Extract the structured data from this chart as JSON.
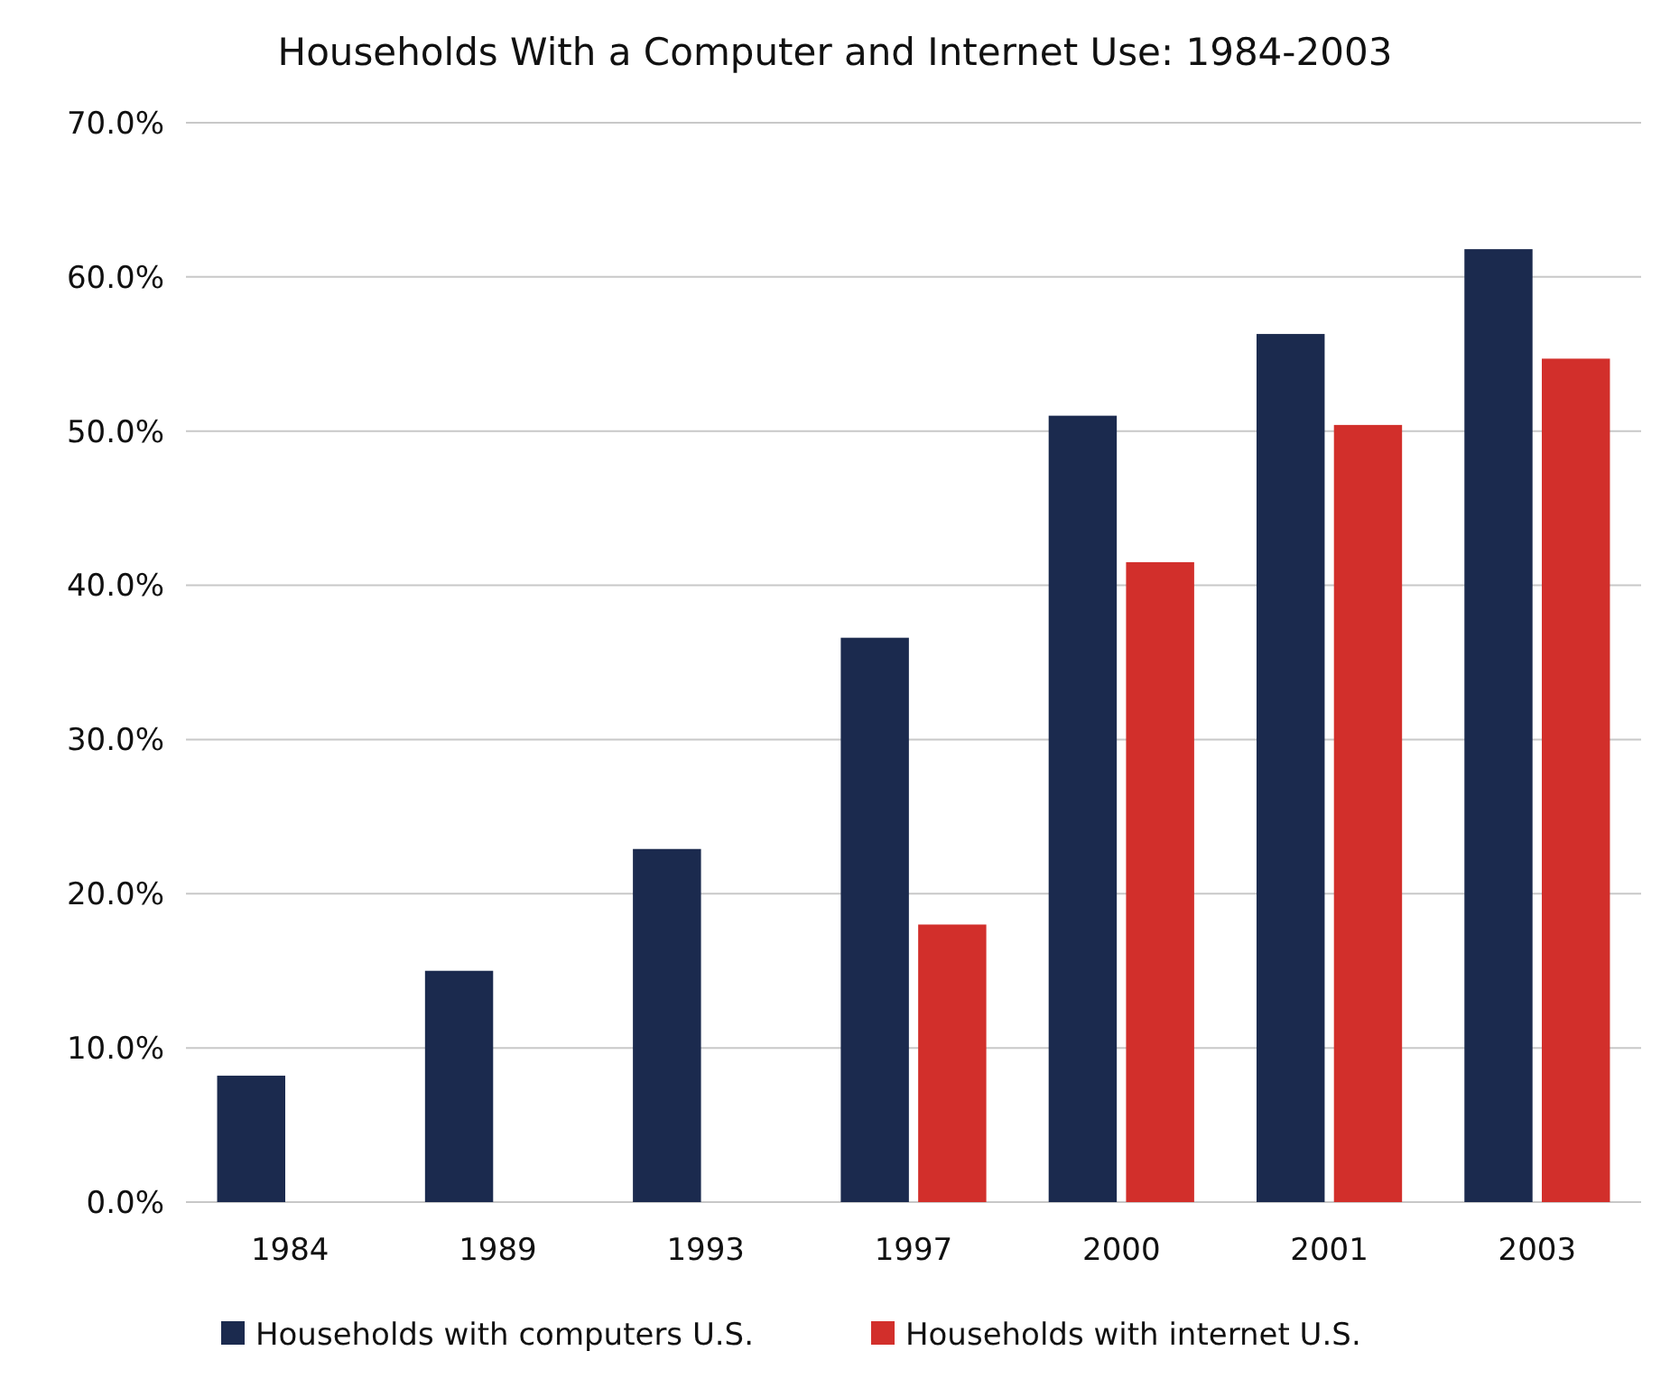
{
  "chart_data": {
    "type": "bar",
    "title": "Households With a Computer and Internet Use: 1984-2003",
    "categories": [
      "1984",
      "1989",
      "1993",
      "1997",
      "2000",
      "2001",
      "2003"
    ],
    "series": [
      {
        "name": "Households with computers U.S.",
        "color": "#1b2a4e",
        "values": [
          8.2,
          15.0,
          22.9,
          36.6,
          51.0,
          56.3,
          61.8
        ]
      },
      {
        "name": "Households with internet U.S.",
        "color": "#d22f2b",
        "values": [
          null,
          null,
          null,
          18.0,
          41.5,
          50.4,
          54.7
        ]
      }
    ],
    "ylim": [
      0,
      70
    ],
    "yticks": [
      {
        "value": 0,
        "label": "0.0%"
      },
      {
        "value": 10,
        "label": "10.0%"
      },
      {
        "value": 20,
        "label": "20.0%"
      },
      {
        "value": 30,
        "label": "30.0%"
      },
      {
        "value": 40,
        "label": "40.0%"
      },
      {
        "value": 50,
        "label": "50.0%"
      },
      {
        "value": 60,
        "label": "60.0%"
      },
      {
        "value": 70,
        "label": "70.0%"
      }
    ],
    "grid": "y",
    "legend": "bottom"
  }
}
